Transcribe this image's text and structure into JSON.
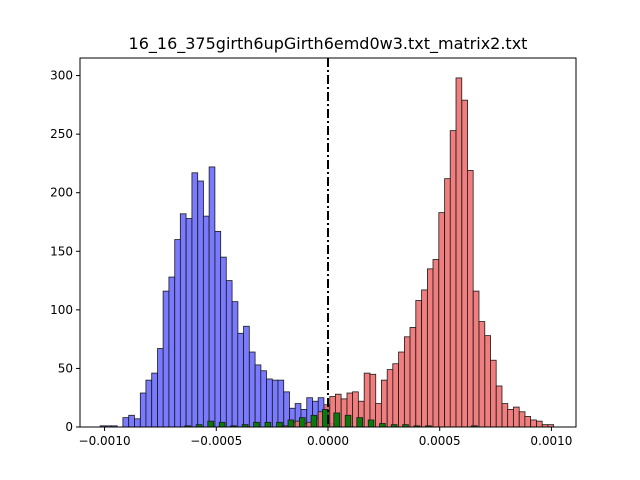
{
  "chart_data": {
    "type": "histogram",
    "title": "16_16_375girth6upGirth6emd0w3.txt_matrix2.txt",
    "xlabel": "",
    "ylabel": "",
    "xlim": [
      -0.00111,
      0.00111
    ],
    "ylim": [
      0,
      315
    ],
    "x_ticks": [
      -0.001,
      -0.0005,
      0.0,
      0.0005,
      0.001
    ],
    "x_tick_labels": [
      "−0.0010",
      "−0.0005",
      "0.0000",
      "0.0005",
      "0.0010"
    ],
    "y_ticks": [
      0,
      50,
      100,
      150,
      200,
      250,
      300
    ],
    "y_tick_labels": [
      "0",
      "50",
      "100",
      "150",
      "200",
      "250",
      "300"
    ],
    "bin_width": 2.57e-05,
    "vline": {
      "x": 0.0,
      "style": "dash-dot",
      "color": "#000000"
    },
    "series": [
      {
        "color": "#6b6bff",
        "bin_starts": [
          -0.00102,
          -0.000995,
          -0.000969,
          -0.000943,
          -0.000918,
          -0.000892,
          -0.000866,
          -0.00084,
          -0.000815,
          -0.000789,
          -0.000763,
          -0.000738,
          -0.000712,
          -0.000686,
          -0.000661,
          -0.000635,
          -0.000609,
          -0.000583,
          -0.000558,
          -0.000532,
          -0.000506,
          -0.000481,
          -0.000455,
          -0.000429,
          -0.000404,
          -0.000378,
          -0.000352,
          -0.000326,
          -0.000301,
          -0.000275,
          -0.000249,
          -0.000224,
          -0.000198,
          -0.000172,
          -0.000147,
          -0.000121,
          -9.5e-05,
          -6.9e-05,
          -4.4e-05,
          -1.8e-05,
          8e-06
        ],
        "values": [
          1,
          1,
          1,
          0,
          8,
          10,
          7,
          29,
          40,
          46,
          67,
          116,
          128,
          160,
          182,
          178,
          217,
          210,
          180,
          222,
          167,
          145,
          125,
          107,
          80,
          86,
          64,
          53,
          48,
          41,
          40,
          40,
          30,
          16,
          20,
          15,
          25,
          22,
          25,
          17,
          3
        ]
      },
      {
        "color": "#f07070",
        "bin_starts": [
          -0.000224,
          -0.000198,
          -0.000172,
          -0.000147,
          -0.000121,
          -9.5e-05,
          -6.9e-05,
          -4.4e-05,
          -1.8e-05,
          8e-06,
          3.3e-05,
          5.9e-05,
          8.5e-05,
          0.00011,
          0.000136,
          0.000162,
          0.000188,
          0.000213,
          0.000239,
          0.000265,
          0.00029,
          0.000316,
          0.000342,
          0.000367,
          0.000393,
          0.000419,
          0.000445,
          0.00047,
          0.000496,
          0.000522,
          0.000547,
          0.000573,
          0.000599,
          0.000624,
          0.00065,
          0.000676,
          0.000702,
          0.000727,
          0.000753,
          0.000779,
          0.000804,
          0.00083,
          0.000856,
          0.000881,
          0.000907,
          0.000933,
          0.000959,
          0.000984
        ],
        "values": [
          1,
          1,
          4,
          5,
          3,
          4,
          7,
          13,
          19,
          26,
          28,
          24,
          29,
          30,
          22,
          46,
          45,
          20,
          40,
          49,
          54,
          64,
          77,
          85,
          108,
          117,
          135,
          143,
          183,
          212,
          253,
          298,
          279,
          219,
          116,
          90,
          78,
          57,
          35,
          20,
          15,
          17,
          13,
          9,
          6,
          5,
          2,
          2
        ]
      },
      {
        "color": "#0a7a0a",
        "bin_starts": [
          -0.000949,
          -0.000898,
          -0.000846,
          -0.000795,
          -0.000744,
          -0.000692,
          -0.000641,
          -0.00059,
          -0.000538,
          -0.000487,
          -0.000436,
          -0.000384,
          -0.000333,
          -0.000282,
          -0.00023,
          -0.000179,
          -0.000128,
          -7.6e-05,
          -2.5e-05,
          2.6e-05,
          7.7e-05,
          0.000129,
          0.00018,
          0.000231,
          0.000283,
          0.000334,
          0.000385,
          0.000437,
          0.000488,
          0.000539,
          0.000591,
          0.000642
        ],
        "values": [
          0,
          0,
          0,
          0,
          0,
          0,
          1,
          2,
          5,
          4,
          1,
          2,
          4,
          4,
          4,
          6,
          8,
          10,
          15,
          12,
          10,
          8,
          6,
          3,
          2,
          2,
          1,
          1,
          0,
          0,
          0,
          1
        ]
      }
    ]
  }
}
